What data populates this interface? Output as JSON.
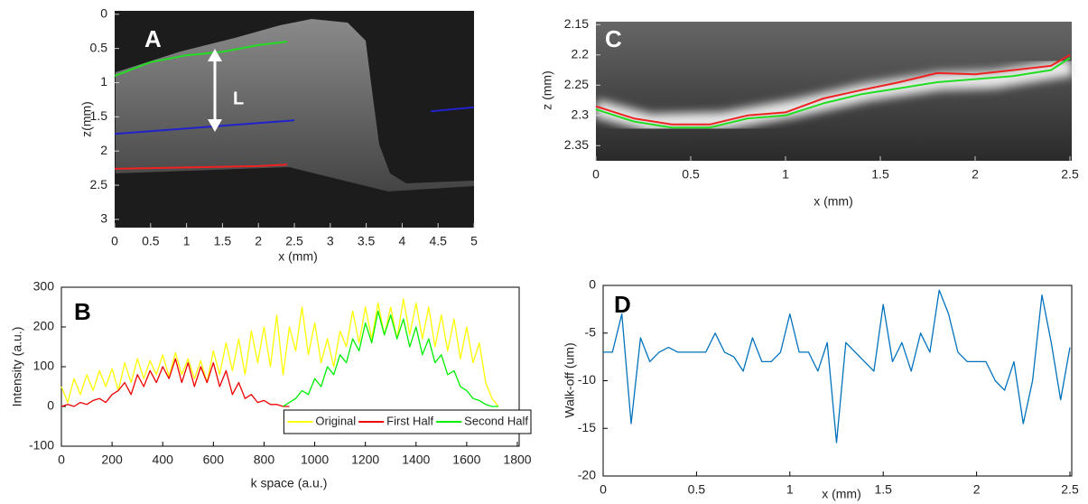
{
  "chart_data": [
    {
      "type": "image",
      "label": "A",
      "annotation": "L",
      "xlabel": "x (mm)",
      "ylabel": "z(mm)",
      "xlim": [
        0,
        5
      ],
      "ylim": [
        -0.05,
        3.12
      ],
      "xticks": [
        0,
        0.5,
        1,
        1.5,
        2,
        2.5,
        3,
        3.5,
        4,
        4.5,
        5
      ],
      "yticks": [
        0,
        0.5,
        1,
        1.5,
        2,
        2.5,
        3
      ],
      "x": [
        0,
        0.5,
        1,
        1.5,
        2,
        2.4,
        2.5,
        3.8,
        4.4,
        5
      ],
      "series": [
        {
          "color": "#22dd22",
          "values": [
            0.9,
            0.7,
            0.6,
            0.55,
            0.45,
            0.4,
            null,
            null,
            null,
            null
          ]
        },
        {
          "color": "#2222cc",
          "values": [
            1.75,
            1.71,
            1.67,
            1.63,
            1.59,
            1.56,
            1.55,
            null,
            1.42,
            1.36
          ]
        },
        {
          "color": "#ee2222",
          "values": [
            2.26,
            2.25,
            2.24,
            2.23,
            2.22,
            2.2,
            null,
            null,
            null,
            null
          ]
        }
      ]
    },
    {
      "type": "line",
      "label": "B",
      "xlabel": "k space (a.u.)",
      "ylabel": "Intensity (a.u.)",
      "xlim": [
        0,
        1800
      ],
      "ylim": [
        -100,
        300
      ],
      "xticks": [
        0,
        200,
        400,
        600,
        800,
        1000,
        1200,
        1400,
        1600,
        1800
      ],
      "yticks": [
        -100,
        0,
        100,
        200,
        300
      ],
      "legend": "lower right",
      "x": [
        0,
        25,
        50,
        75,
        100,
        125,
        150,
        175,
        200,
        225,
        250,
        275,
        300,
        325,
        350,
        375,
        400,
        425,
        450,
        475,
        500,
        525,
        550,
        575,
        600,
        625,
        650,
        675,
        700,
        725,
        750,
        775,
        800,
        825,
        850,
        875,
        900,
        925,
        950,
        975,
        1000,
        1025,
        1050,
        1075,
        1100,
        1125,
        1150,
        1175,
        1200,
        1225,
        1250,
        1275,
        1300,
        1325,
        1350,
        1375,
        1400,
        1425,
        1450,
        1475,
        1500,
        1525,
        1550,
        1575,
        1600,
        1625,
        1650,
        1675,
        1700,
        1725
      ],
      "series": [
        {
          "name": "Original",
          "color": "#ffff00",
          "values": [
            50,
            10,
            70,
            30,
            80,
            40,
            90,
            50,
            95,
            40,
            110,
            60,
            120,
            70,
            115,
            80,
            130,
            75,
            135,
            80,
            120,
            70,
            115,
            60,
            140,
            80,
            160,
            90,
            170,
            80,
            190,
            110,
            200,
            100,
            230,
            80,
            200,
            140,
            250,
            130,
            210,
            110,
            170,
            100,
            190,
            150,
            240,
            160,
            250,
            170,
            260,
            180,
            250,
            170,
            270,
            180,
            260,
            170,
            250,
            150,
            230,
            140,
            220,
            120,
            200,
            110,
            160,
            60,
            20,
            0
          ]
        },
        {
          "name": "First Half",
          "color": "#ee0000",
          "values": [
            0,
            5,
            0,
            10,
            5,
            15,
            20,
            10,
            30,
            40,
            60,
            30,
            80,
            50,
            90,
            60,
            100,
            70,
            120,
            60,
            110,
            50,
            100,
            60,
            110,
            50,
            90,
            30,
            60,
            20,
            30,
            10,
            15,
            5,
            5,
            0,
            0,
            null,
            null,
            null,
            null,
            null,
            null,
            null,
            null,
            null,
            null,
            null,
            null,
            null,
            null,
            null,
            null,
            null,
            null,
            null,
            null,
            null,
            null,
            null,
            null,
            null,
            null,
            null,
            null,
            null,
            null,
            null,
            null,
            null
          ]
        },
        {
          "name": "Second Half",
          "color": "#00ee00",
          "values": [
            null,
            null,
            null,
            null,
            null,
            null,
            null,
            null,
            null,
            null,
            null,
            null,
            null,
            null,
            null,
            null,
            null,
            null,
            null,
            null,
            null,
            null,
            null,
            null,
            null,
            null,
            null,
            null,
            null,
            null,
            null,
            null,
            null,
            null,
            null,
            0,
            10,
            20,
            40,
            30,
            70,
            50,
            100,
            80,
            130,
            110,
            170,
            140,
            210,
            160,
            240,
            180,
            230,
            170,
            220,
            150,
            200,
            130,
            170,
            110,
            130,
            80,
            90,
            50,
            40,
            20,
            15,
            5,
            0,
            0
          ]
        }
      ]
    },
    {
      "type": "image",
      "label": "C",
      "xlabel": "x (mm)",
      "ylabel": "z (mm)",
      "xlim": [
        0,
        2.5
      ],
      "ylim": [
        2.145,
        2.375
      ],
      "xticks": [
        0,
        0.5,
        1,
        1.5,
        2,
        2.5
      ],
      "yticks": [
        2.15,
        2.2,
        2.25,
        2.3,
        2.35
      ],
      "x": [
        0,
        0.2,
        0.4,
        0.6,
        0.8,
        1.0,
        1.2,
        1.4,
        1.6,
        1.8,
        2.0,
        2.2,
        2.4,
        2.5
      ],
      "series": [
        {
          "color": "#ee2222",
          "values": [
            2.285,
            2.305,
            2.315,
            2.315,
            2.3,
            2.295,
            2.272,
            2.258,
            2.245,
            2.23,
            2.232,
            2.225,
            2.218,
            2.2
          ]
        },
        {
          "color": "#22dd22",
          "values": [
            2.29,
            2.31,
            2.32,
            2.32,
            2.305,
            2.3,
            2.28,
            2.265,
            2.255,
            2.245,
            2.24,
            2.235,
            2.225,
            2.205
          ]
        }
      ]
    },
    {
      "type": "line",
      "label": "D",
      "xlabel": "x (mm)",
      "ylabel": "Walk-off (um)",
      "xlim": [
        0,
        2.5
      ],
      "ylim": [
        -20,
        0
      ],
      "xticks": [
        0,
        0.5,
        1,
        1.5,
        2,
        2.5
      ],
      "yticks": [
        -20,
        -15,
        -10,
        -5,
        0
      ],
      "x": [
        0,
        0.05,
        0.1,
        0.15,
        0.2,
        0.25,
        0.3,
        0.35,
        0.4,
        0.45,
        0.5,
        0.55,
        0.6,
        0.65,
        0.7,
        0.75,
        0.8,
        0.85,
        0.9,
        0.95,
        1.0,
        1.05,
        1.1,
        1.15,
        1.2,
        1.25,
        1.3,
        1.35,
        1.4,
        1.45,
        1.5,
        1.55,
        1.6,
        1.65,
        1.7,
        1.75,
        1.8,
        1.85,
        1.9,
        1.95,
        2.0,
        2.05,
        2.1,
        2.15,
        2.2,
        2.25,
        2.3,
        2.35,
        2.4,
        2.45,
        2.5
      ],
      "series": [
        {
          "color": "#0072bd",
          "values": [
            -7,
            -7,
            -3,
            -14.5,
            -5.5,
            -8,
            -7,
            -6.5,
            -7,
            -7,
            -7,
            -7,
            -5,
            -7,
            -7.5,
            -9,
            -5.5,
            -8,
            -8,
            -7,
            -3,
            -7,
            -7,
            -9,
            -6,
            -16.5,
            -6,
            -7,
            -8,
            -9,
            -2,
            -8,
            -6,
            -9,
            -5,
            -7,
            -0.5,
            -3,
            -7,
            -8,
            -8,
            -8,
            -10,
            -11,
            -8,
            -14.5,
            -10,
            -1,
            -6,
            -12,
            -6.5
          ]
        }
      ]
    }
  ]
}
